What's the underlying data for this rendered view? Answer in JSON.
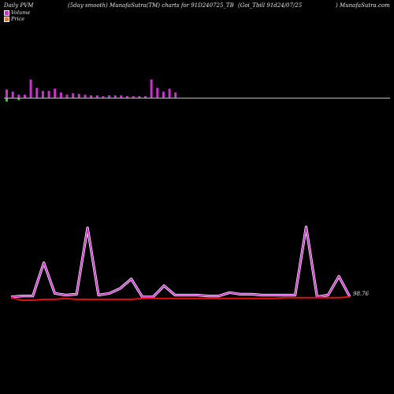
{
  "header": {
    "left": "Daily PVM",
    "center_left": "(5day smooth) MunafaSutra(TM) charts for 91D240725_TB",
    "center_right": "(Goi_Tbill 91d24/07/25",
    "right": ") MunafaSutra.com"
  },
  "legend": [
    {
      "label": "Volume",
      "color": "#cc33cc"
    },
    {
      "label": "Price",
      "color": "#e07a3a"
    }
  ],
  "colors": {
    "volume_pos": "#cc33cc",
    "volume_neg": "#33cc33",
    "baseline": "#bbbbbb",
    "line_magenta": "#cc33cc",
    "line_red": "#dd1111",
    "background": "#000000"
  },
  "chart_data": {
    "type": "line",
    "price_label": "98.76",
    "volume_bars": [
      {
        "value": 11,
        "sign": 1
      },
      {
        "value": 8,
        "sign": 1
      },
      {
        "value": 4,
        "sign": 1
      },
      {
        "value": 4,
        "sign": 1
      },
      {
        "value": 24,
        "sign": 1
      },
      {
        "value": 13,
        "sign": 1
      },
      {
        "value": 9,
        "sign": 1
      },
      {
        "value": 9,
        "sign": 1
      },
      {
        "value": 12,
        "sign": 1
      },
      {
        "value": 7,
        "sign": 1
      },
      {
        "value": 4,
        "sign": 1
      },
      {
        "value": 6,
        "sign": 1
      },
      {
        "value": 5,
        "sign": 1
      },
      {
        "value": 4,
        "sign": 1
      },
      {
        "value": 3,
        "sign": 1
      },
      {
        "value": 3,
        "sign": 1
      },
      {
        "value": 2,
        "sign": 1
      },
      {
        "value": 3,
        "sign": 1
      },
      {
        "value": 3,
        "sign": 1
      },
      {
        "value": 3,
        "sign": 1
      },
      {
        "value": 2,
        "sign": 1
      },
      {
        "value": 2,
        "sign": 1
      },
      {
        "value": 2,
        "sign": 1
      },
      {
        "value": 2,
        "sign": 1
      },
      {
        "value": 24,
        "sign": 1
      },
      {
        "value": 13,
        "sign": 1
      },
      {
        "value": 8,
        "sign": 1
      },
      {
        "value": 12,
        "sign": 1
      },
      {
        "value": 7,
        "sign": 1
      }
    ],
    "volume_neg_bars": [
      {
        "index": 0,
        "value": 4
      },
      {
        "index": 2,
        "value": 2
      }
    ],
    "series": [
      {
        "color": "#cc33cc",
        "values": [
          4,
          5,
          5,
          44,
          8,
          6,
          7,
          85,
          6,
          8,
          14,
          25,
          4,
          4,
          17,
          6,
          6,
          6,
          5,
          5,
          9,
          7,
          7,
          6,
          6,
          6,
          6,
          86,
          4,
          6,
          28,
          4
        ]
      },
      {
        "color": "#dd1111",
        "values": [
          3,
          0,
          0,
          1,
          1,
          2,
          1,
          1,
          1,
          1,
          1,
          1,
          2,
          2,
          2,
          2,
          2,
          2,
          2,
          2,
          2,
          2,
          2,
          2,
          2,
          3,
          3,
          3,
          3,
          3,
          3,
          4
        ]
      }
    ]
  }
}
